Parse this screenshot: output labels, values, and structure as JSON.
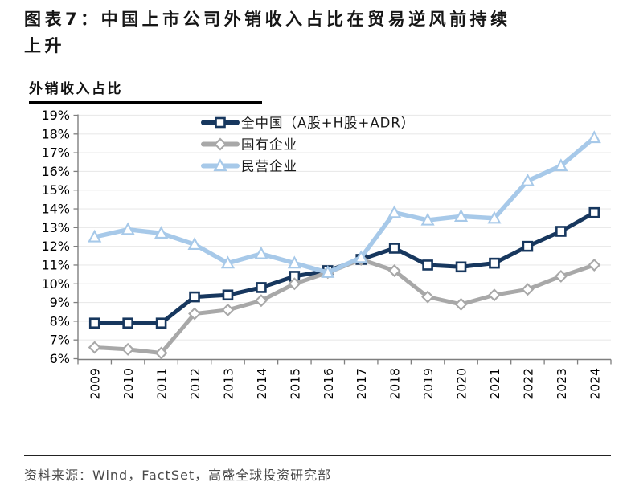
{
  "header": {
    "title_line1": "图表7：中国上市公司外销收入占比在贸易逆风前持续",
    "title_line2": "上升"
  },
  "chart_subtitle": "外销收入占比",
  "footer": {
    "source_note": "资料来源：Wind，FactSet，高盛全球投资研究部"
  },
  "colors": {
    "all_china": "#17375E",
    "soe": "#A8A8A8",
    "poe": "#A7C9E9",
    "grid": "#EAEAEA",
    "axis": "#7F7F7F",
    "tick_label": "#000000",
    "marker_fill": "#FFFFFF"
  },
  "chart_data": {
    "type": "line",
    "title": "外销收入占比",
    "x": [
      2009,
      2010,
      2011,
      2012,
      2013,
      2014,
      2015,
      2016,
      2017,
      2018,
      2019,
      2020,
      2021,
      2022,
      2023,
      2024
    ],
    "series": [
      {
        "key": "all_china",
        "name": "全中国（A股+H股+ADR）",
        "color": "#17375E",
        "marker": "square",
        "values": [
          7.9,
          7.9,
          7.9,
          9.3,
          9.4,
          9.8,
          10.4,
          10.7,
          11.3,
          11.9,
          11.0,
          10.9,
          11.1,
          12.0,
          12.8,
          13.8
        ]
      },
      {
        "key": "soe",
        "name": "国有企业",
        "color": "#A8A8A8",
        "marker": "diamond",
        "values": [
          6.6,
          6.5,
          6.3,
          8.4,
          8.6,
          9.1,
          10.0,
          10.6,
          11.3,
          10.7,
          9.3,
          8.9,
          9.4,
          9.7,
          10.4,
          11.0
        ]
      },
      {
        "key": "poe",
        "name": "民营企业",
        "color": "#A7C9E9",
        "marker": "triangle",
        "values": [
          12.5,
          12.9,
          12.7,
          12.1,
          11.1,
          11.6,
          11.1,
          10.6,
          11.4,
          13.8,
          13.4,
          13.6,
          13.5,
          15.5,
          16.3,
          17.8
        ]
      }
    ],
    "ylim": [
      6,
      19
    ],
    "ytick_step": 1,
    "ytick_suffix": "%",
    "grid": true,
    "legend_position": "top-center-inside"
  }
}
